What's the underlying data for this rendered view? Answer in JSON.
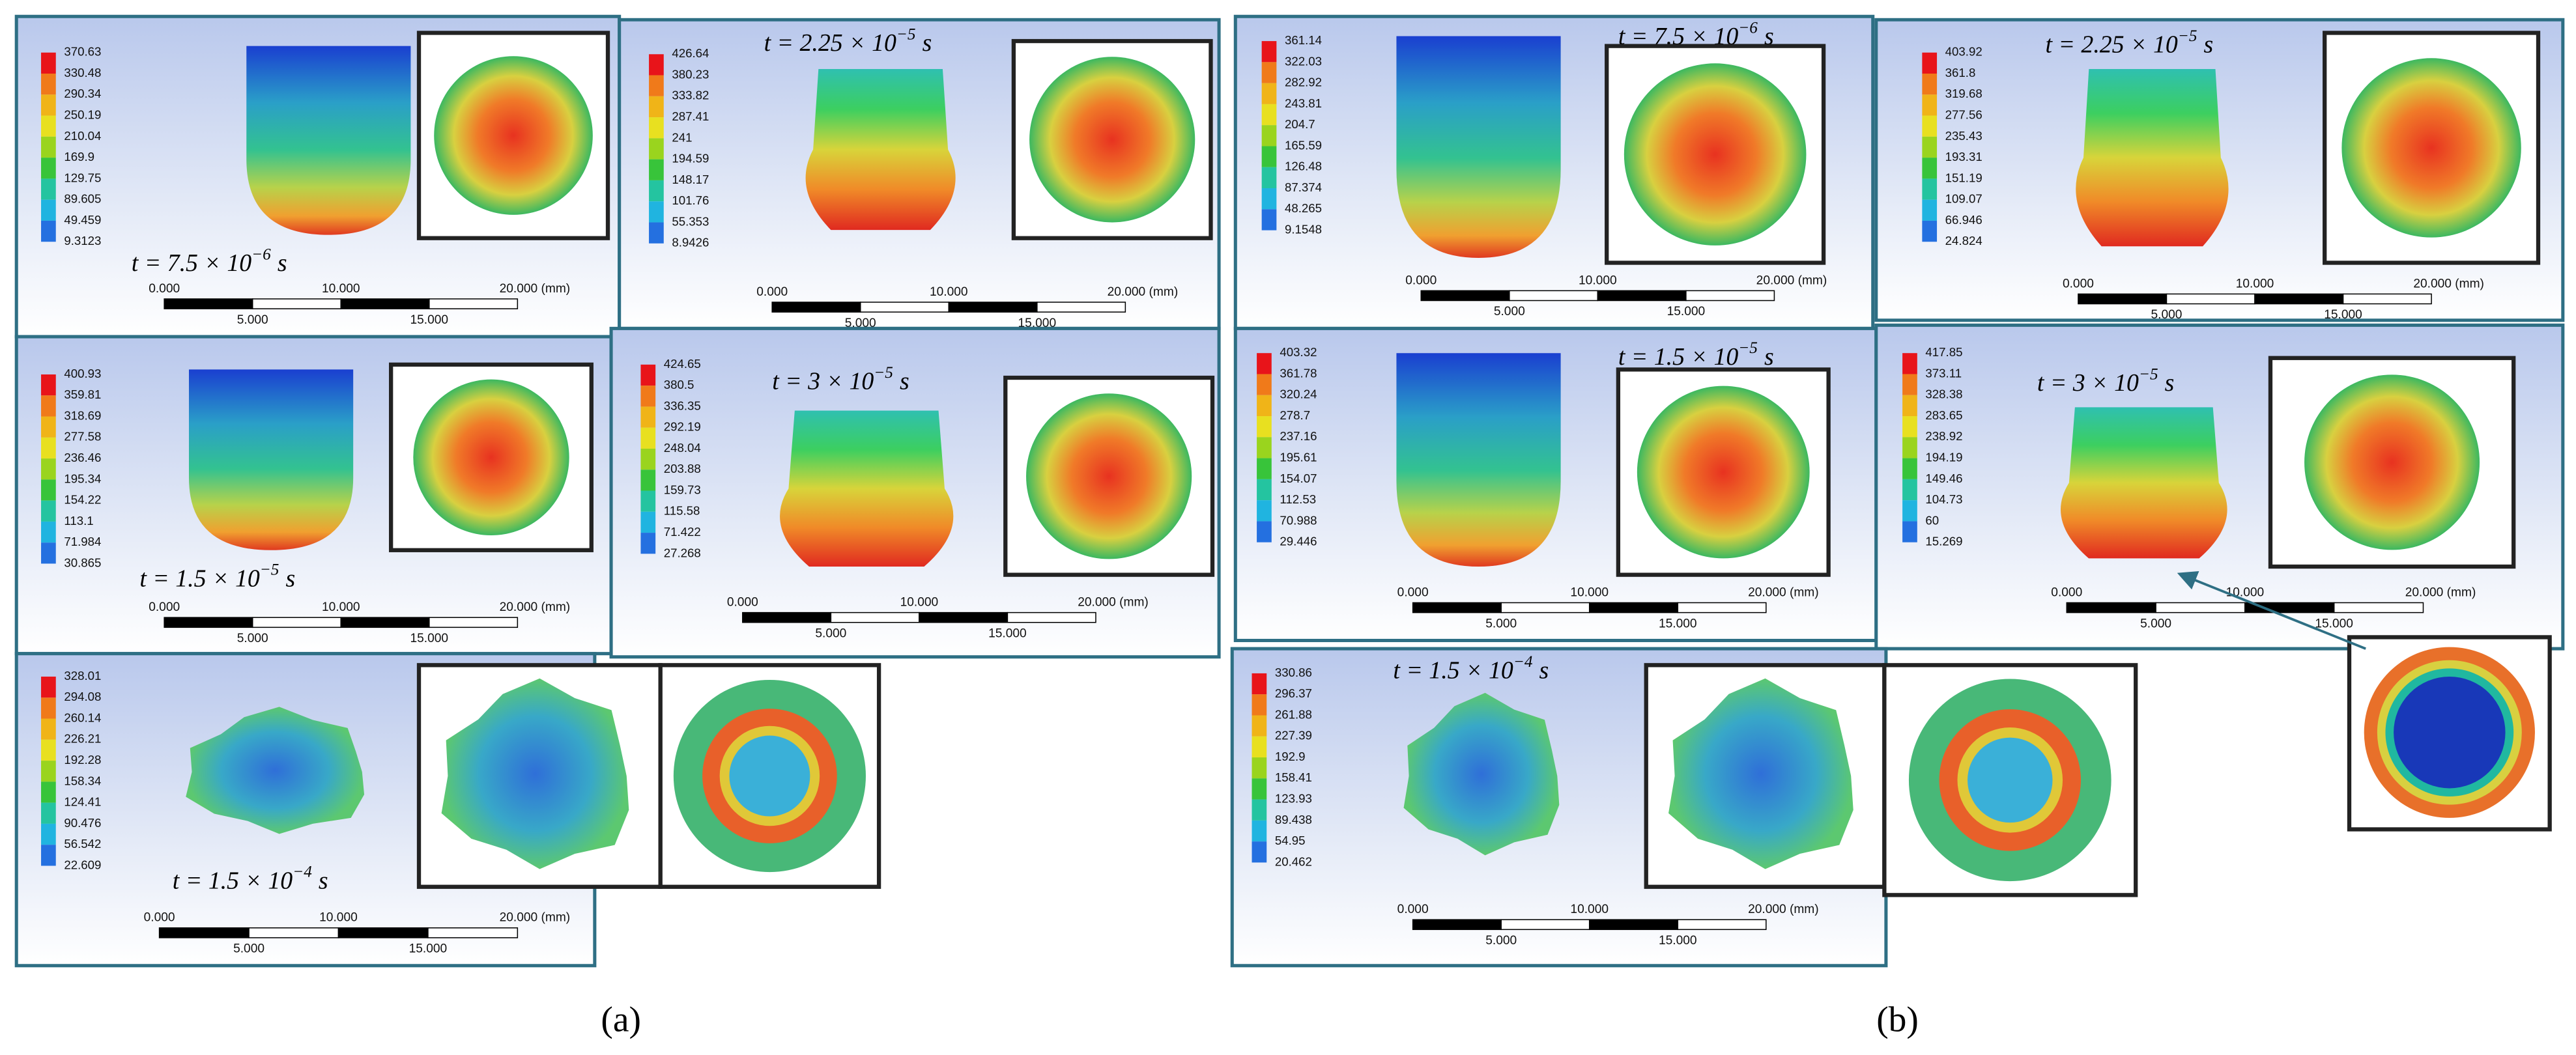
{
  "panels": [
    {
      "legend": [
        "370.63",
        "330.48",
        "290.34",
        "250.19",
        "210.04",
        "169.9",
        "129.75",
        "89.605",
        "49.459",
        "9.3123"
      ],
      "time": {
        "base": "t = 7.5 × 10",
        "exp": "−6",
        "unit": "s"
      }
    },
    {
      "legend": [
        "426.64",
        "380.23",
        "333.82",
        "287.41",
        "241",
        "194.59",
        "148.17",
        "101.76",
        "55.353",
        "8.9426"
      ],
      "time": {
        "base": "t = 2.25 × 10",
        "exp": "−5",
        "unit": "s"
      }
    },
    {
      "legend": [
        "400.93",
        "359.81",
        "318.69",
        "277.58",
        "236.46",
        "195.34",
        "154.22",
        "113.1",
        "71.984",
        "30.865"
      ],
      "time": {
        "base": "t = 1.5 × 10",
        "exp": "−5",
        "unit": "s"
      }
    },
    {
      "legend": [
        "424.65",
        "380.5",
        "336.35",
        "292.19",
        "248.04",
        "203.88",
        "159.73",
        "115.58",
        "71.422",
        "27.268"
      ],
      "time": {
        "base": "t = 3 × 10",
        "exp": "−5",
        "unit": "s"
      }
    },
    {
      "legend": [
        "328.01",
        "294.08",
        "260.14",
        "226.21",
        "192.28",
        "158.34",
        "124.41",
        "90.476",
        "56.542",
        "22.609"
      ],
      "time": {
        "base": "t = 1.5 × 10",
        "exp": "−4",
        "unit": "s"
      }
    },
    {
      "legend": [
        "361.14",
        "322.03",
        "282.92",
        "243.81",
        "204.7",
        "165.59",
        "126.48",
        "87.374",
        "48.265",
        "9.1548"
      ],
      "time": {
        "base": "t = 7.5 × 10",
        "exp": "−6",
        "unit": "s"
      }
    },
    {
      "legend": [
        "403.92",
        "361.8",
        "319.68",
        "277.56",
        "235.43",
        "193.31",
        "151.19",
        "109.07",
        "66.946",
        "24.824"
      ],
      "time": {
        "base": "t = 2.25 × 10",
        "exp": "−5",
        "unit": "s"
      }
    },
    {
      "legend": [
        "403.32",
        "361.78",
        "320.24",
        "278.7",
        "237.16",
        "195.61",
        "154.07",
        "112.53",
        "70.988",
        "29.446"
      ],
      "time": {
        "base": "t = 1.5 × 10",
        "exp": "−5",
        "unit": "s"
      }
    },
    {
      "legend": [
        "417.85",
        "373.11",
        "328.38",
        "283.65",
        "238.92",
        "194.19",
        "149.46",
        "104.73",
        "60",
        "15.269"
      ],
      "time": {
        "base": "t = 3 × 10",
        "exp": "−5",
        "unit": "s"
      }
    },
    {
      "legend": [
        "330.86",
        "296.37",
        "261.88",
        "227.39",
        "192.9",
        "158.41",
        "123.93",
        "89.438",
        "54.95",
        "20.462"
      ],
      "time": {
        "base": "t = 1.5 × 10",
        "exp": "−4",
        "unit": "s"
      }
    }
  ],
  "scale_bar": {
    "top": [
      "0.000",
      "10.000",
      "20.000 (mm)"
    ],
    "bottom": [
      "5.000",
      "15.000"
    ]
  },
  "captions": [
    "(a)",
    "(b)"
  ]
}
